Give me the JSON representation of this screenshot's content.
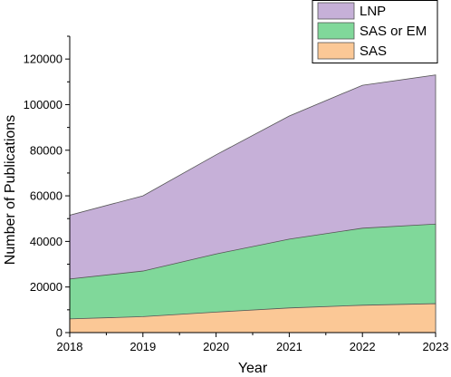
{
  "chart_data": {
    "type": "area",
    "stacked": false,
    "x": [
      2018,
      2019,
      2020,
      2021,
      2022,
      2023
    ],
    "xlabel": "Year",
    "ylabel": "Number of Publications",
    "xlim": [
      2018,
      2023
    ],
    "ylim": [
      0,
      130000
    ],
    "x_ticks": [
      "2018",
      "2019",
      "2020",
      "2021",
      "2022",
      "2023"
    ],
    "y_ticks": [
      0,
      20000,
      40000,
      60000,
      80000,
      100000,
      120000
    ],
    "y_tick_labels": [
      "0",
      "20000",
      "40000",
      "60000",
      "80000",
      "100000",
      "120000"
    ],
    "grid": false,
    "legend_position": "top-right",
    "series": [
      {
        "name": "LNP",
        "values": [
          51500,
          60000,
          78000,
          95000,
          108500,
          113000
        ],
        "color": "#c6b0d8"
      },
      {
        "name": "SAS or EM",
        "values": [
          23500,
          27000,
          34500,
          41000,
          45800,
          47600
        ],
        "color": "#80d89a"
      },
      {
        "name": "SAS",
        "values": [
          6000,
          7000,
          9000,
          10800,
          12000,
          12700
        ],
        "color": "#fbc896"
      }
    ]
  }
}
